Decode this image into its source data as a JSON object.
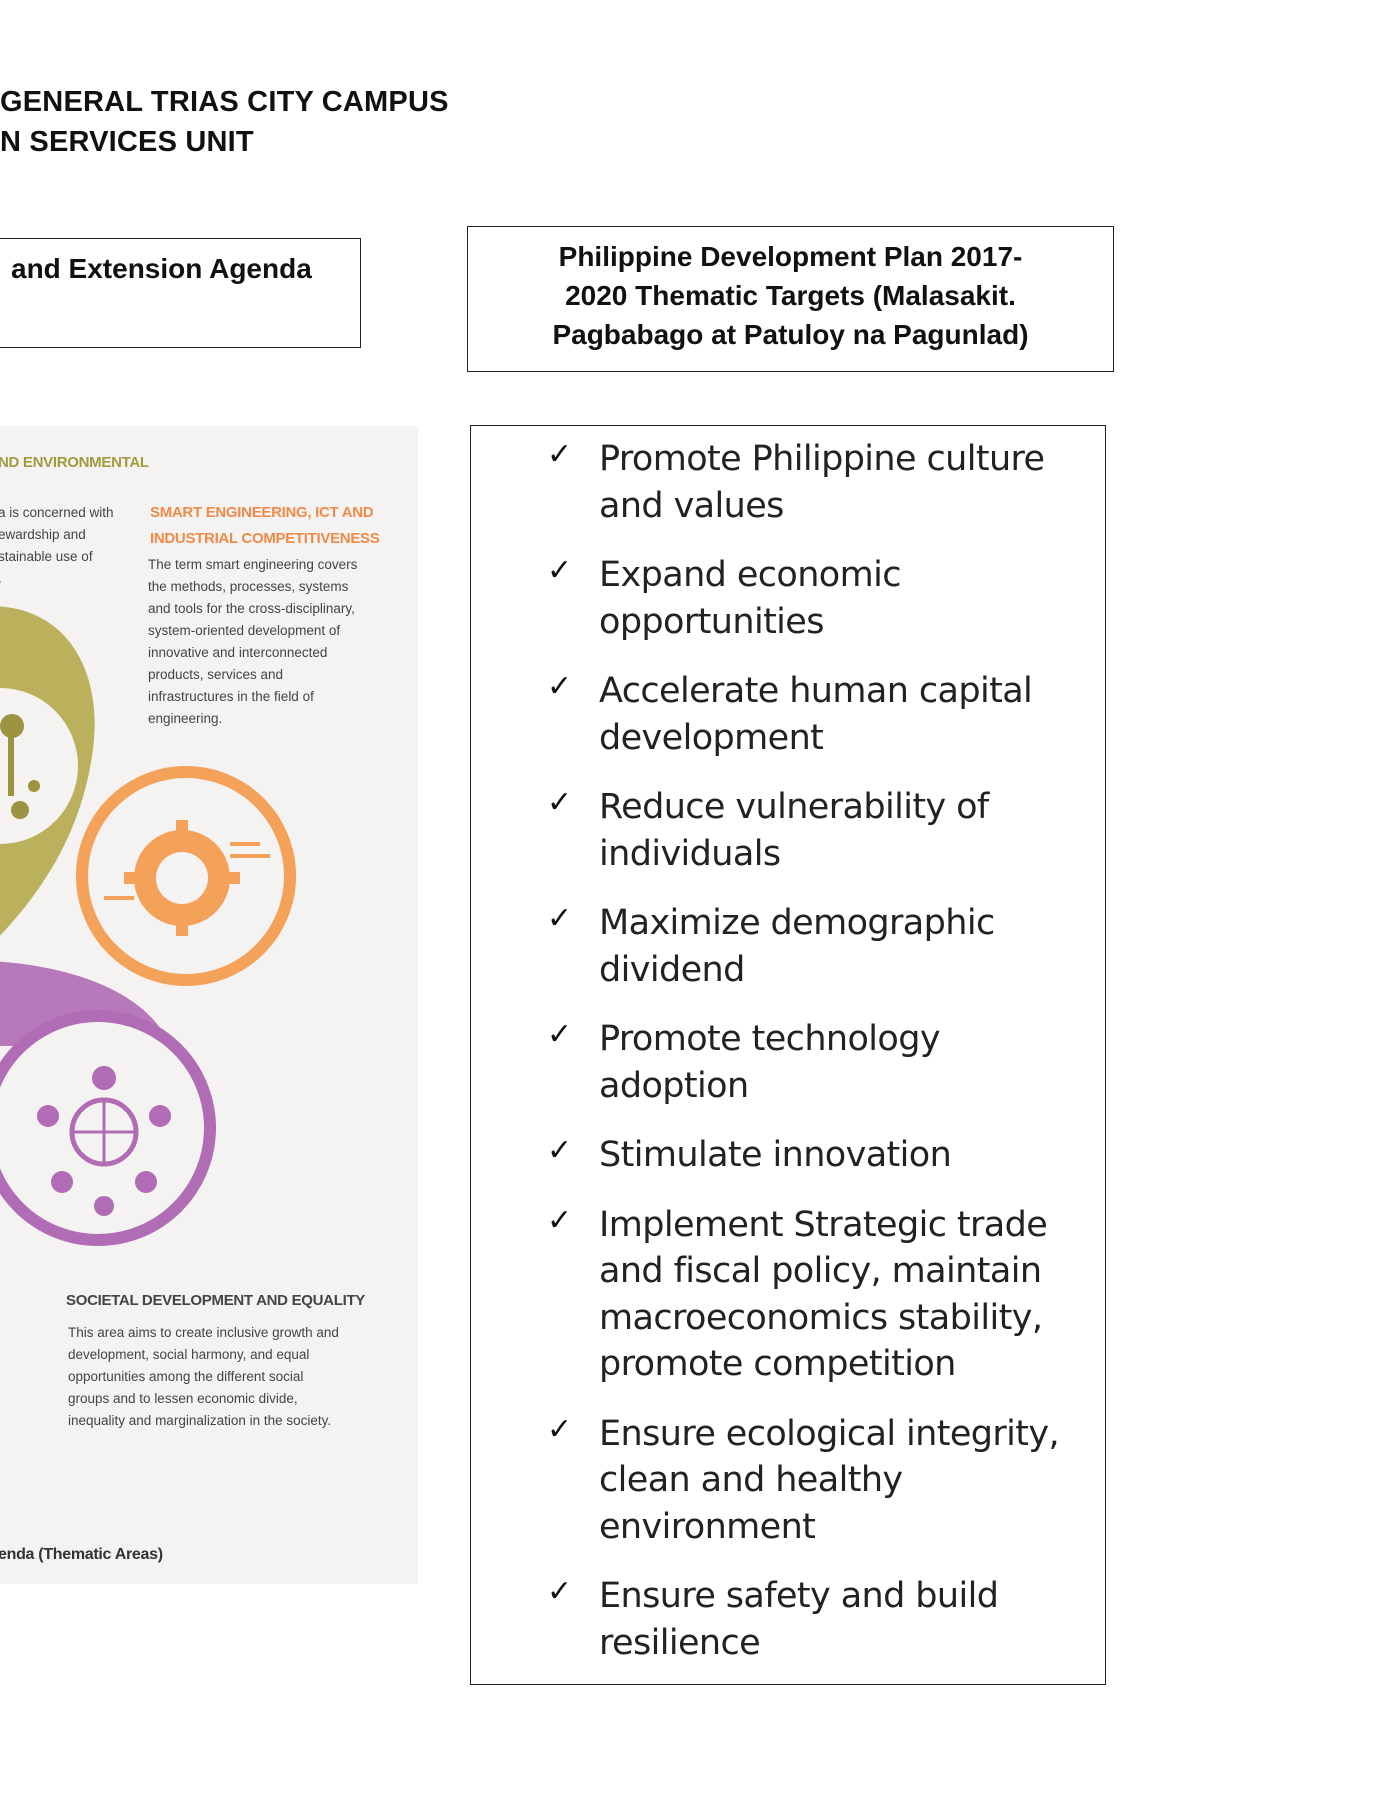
{
  "header": {
    "line1": "GENERAL TRIAS CITY CAMPUS",
    "line2": "N SERVICES UNIT"
  },
  "agenda_box": {
    "label": "and Extension Agenda"
  },
  "pdp_box": {
    "lines": [
      "Philippine Development Plan 2017-",
      "2020 Thematic Targets (Malasakit.",
      "Pagbabago at Patuloy na Pagunlad)"
    ]
  },
  "figure": {
    "env_heading": "ND ENVIRONMENTAL",
    "env_text": [
      "a is concerned with",
      "ewardship and",
      "stainable use of",
      "."
    ],
    "smart_heading": [
      "SMART ENGINEERING, ICT AND",
      "INDUSTRIAL COMPETITIVENESS"
    ],
    "smart_text": [
      "The term smart engineering covers",
      "the methods, processes, systems",
      "and tools for the cross-disciplinary,",
      "system-oriented development of",
      "innovative and interconnected",
      "products, services and",
      "infrastructures in the field of",
      "engineering."
    ],
    "societal_heading": "SOCIETAL DEVELOPMENT AND EQUALITY",
    "societal_text": [
      "This area aims to create inclusive growth and",
      "development, social harmony, and equal",
      "opportunities among the different social",
      "groups and to lessen economic divide,",
      "inequality and marginalization in the society."
    ],
    "caption": "enda (Thematic Areas)",
    "colors": {
      "olive": "#b5aa4c",
      "orange": "#f4a15a",
      "purple": "#b06cb4",
      "heading_orange": "#f08a4b",
      "heading_olive": "#a39a3e",
      "heading_dark": "#444444"
    }
  },
  "targets": [
    {
      "lines": [
        "Promote Philippine culture",
        "and values"
      ]
    },
    {
      "lines": [
        "Expand economic",
        "opportunities"
      ]
    },
    {
      "lines": [
        "Accelerate human capital",
        "development"
      ]
    },
    {
      "lines": [
        "Reduce vulnerability of",
        "individuals"
      ]
    },
    {
      "lines": [
        "Maximize demographic",
        "dividend"
      ]
    },
    {
      "lines": [
        "Promote technology",
        "adoption"
      ]
    },
    {
      "lines": [
        "Stimulate innovation"
      ]
    },
    {
      "lines": [
        "Implement Strategic trade",
        "and fiscal policy, maintain",
        "macroeconomics stability,",
        "promote competition"
      ]
    },
    {
      "lines": [
        "Ensure ecological integrity,",
        "clean and healthy",
        "environment"
      ]
    },
    {
      "lines": [
        "Ensure safety and build",
        "resilience"
      ]
    }
  ],
  "check_glyph": "✓"
}
